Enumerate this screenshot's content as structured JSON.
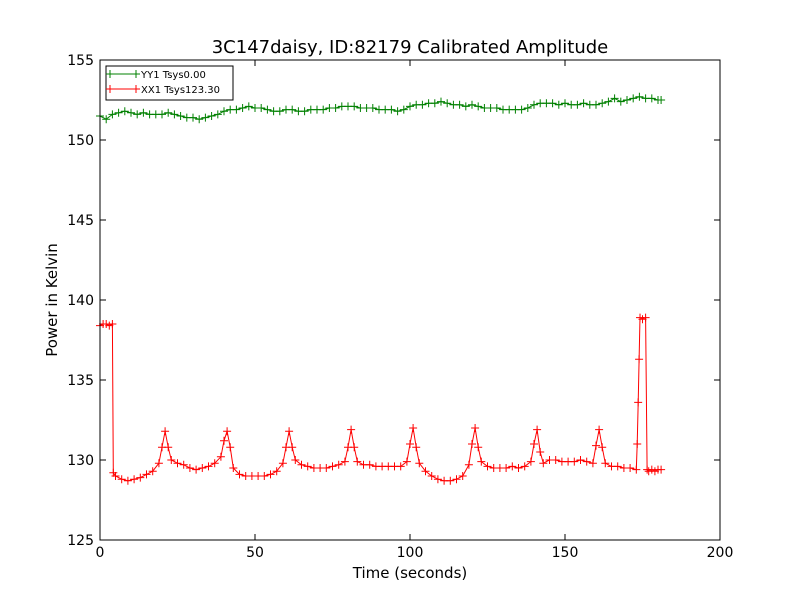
{
  "chart_data": {
    "type": "line",
    "title": "3C147daisy, ID:82179 Calibrated Amplitude",
    "xlabel": "Time (seconds)",
    "ylabel": "Power in Kelvin",
    "xlim": [
      0,
      200
    ],
    "ylim": [
      125,
      155
    ],
    "xticks": [
      0,
      50,
      100,
      150,
      200
    ],
    "yticks": [
      125,
      130,
      135,
      140,
      145,
      150,
      155
    ],
    "grid": false,
    "legend_position": "top-left",
    "marker": "plus",
    "series": [
      {
        "name": "YY1 Tsys0.00",
        "color": "#008000",
        "points": [
          [
            0,
            151.5
          ],
          [
            2,
            151.3
          ],
          [
            4,
            151.6
          ],
          [
            6,
            151.7
          ],
          [
            8,
            151.8
          ],
          [
            10,
            151.7
          ],
          [
            12,
            151.6
          ],
          [
            14,
            151.7
          ],
          [
            16,
            151.6
          ],
          [
            18,
            151.6
          ],
          [
            20,
            151.6
          ],
          [
            22,
            151.7
          ],
          [
            24,
            151.6
          ],
          [
            26,
            151.5
          ],
          [
            28,
            151.4
          ],
          [
            30,
            151.4
          ],
          [
            32,
            151.3
          ],
          [
            34,
            151.4
          ],
          [
            36,
            151.5
          ],
          [
            38,
            151.6
          ],
          [
            40,
            151.8
          ],
          [
            42,
            151.9
          ],
          [
            44,
            151.9
          ],
          [
            46,
            152.0
          ],
          [
            48,
            152.1
          ],
          [
            50,
            152.0
          ],
          [
            52,
            152.0
          ],
          [
            54,
            151.9
          ],
          [
            56,
            151.8
          ],
          [
            58,
            151.8
          ],
          [
            60,
            151.9
          ],
          [
            62,
            151.9
          ],
          [
            64,
            151.8
          ],
          [
            66,
            151.8
          ],
          [
            68,
            151.9
          ],
          [
            70,
            151.9
          ],
          [
            72,
            151.9
          ],
          [
            74,
            152.0
          ],
          [
            76,
            152.0
          ],
          [
            78,
            152.1
          ],
          [
            80,
            152.1
          ],
          [
            82,
            152.1
          ],
          [
            84,
            152.0
          ],
          [
            86,
            152.0
          ],
          [
            88,
            152.0
          ],
          [
            90,
            151.9
          ],
          [
            92,
            151.9
          ],
          [
            94,
            151.9
          ],
          [
            96,
            151.8
          ],
          [
            98,
            151.9
          ],
          [
            100,
            152.1
          ],
          [
            102,
            152.2
          ],
          [
            104,
            152.2
          ],
          [
            106,
            152.3
          ],
          [
            108,
            152.3
          ],
          [
            110,
            152.4
          ],
          [
            112,
            152.3
          ],
          [
            114,
            152.2
          ],
          [
            116,
            152.2
          ],
          [
            118,
            152.1
          ],
          [
            120,
            152.2
          ],
          [
            122,
            152.1
          ],
          [
            124,
            152.0
          ],
          [
            126,
            152.0
          ],
          [
            128,
            152.0
          ],
          [
            130,
            151.9
          ],
          [
            132,
            151.9
          ],
          [
            134,
            151.9
          ],
          [
            136,
            151.9
          ],
          [
            138,
            152.0
          ],
          [
            140,
            152.2
          ],
          [
            142,
            152.3
          ],
          [
            144,
            152.3
          ],
          [
            146,
            152.3
          ],
          [
            148,
            152.2
          ],
          [
            150,
            152.3
          ],
          [
            152,
            152.2
          ],
          [
            154,
            152.2
          ],
          [
            156,
            152.3
          ],
          [
            158,
            152.2
          ],
          [
            160,
            152.2
          ],
          [
            162,
            152.3
          ],
          [
            164,
            152.4
          ],
          [
            166,
            152.6
          ],
          [
            168,
            152.4
          ],
          [
            170,
            152.5
          ],
          [
            172,
            152.6
          ],
          [
            174,
            152.7
          ],
          [
            176,
            152.6
          ],
          [
            178,
            152.6
          ],
          [
            180,
            152.5
          ],
          [
            181,
            152.5
          ]
        ]
      },
      {
        "name": "XX1 Tsys123.30",
        "color": "#ff0000",
        "points": [
          [
            0,
            138.4
          ],
          [
            1,
            138.5
          ],
          [
            2,
            138.5
          ],
          [
            3,
            138.4
          ],
          [
            4,
            138.5
          ],
          [
            4.3,
            129.2
          ],
          [
            5,
            129.0
          ],
          [
            7,
            128.8
          ],
          [
            9,
            128.7
          ],
          [
            11,
            128.8
          ],
          [
            13,
            128.9
          ],
          [
            15,
            129.1
          ],
          [
            17,
            129.3
          ],
          [
            19,
            129.8
          ],
          [
            20,
            130.8
          ],
          [
            21,
            131.8
          ],
          [
            22,
            130.8
          ],
          [
            23,
            130.0
          ],
          [
            25,
            129.8
          ],
          [
            27,
            129.7
          ],
          [
            29,
            129.5
          ],
          [
            31,
            129.4
          ],
          [
            33,
            129.5
          ],
          [
            35,
            129.6
          ],
          [
            37,
            129.8
          ],
          [
            39,
            130.2
          ],
          [
            40,
            131.2
          ],
          [
            41,
            131.8
          ],
          [
            42,
            130.8
          ],
          [
            43,
            129.5
          ],
          [
            45,
            129.1
          ],
          [
            47,
            129.0
          ],
          [
            49,
            129.0
          ],
          [
            51,
            129.0
          ],
          [
            53,
            129.0
          ],
          [
            55,
            129.1
          ],
          [
            57,
            129.3
          ],
          [
            59,
            129.8
          ],
          [
            60,
            130.8
          ],
          [
            61,
            131.8
          ],
          [
            62,
            130.8
          ],
          [
            63,
            130.0
          ],
          [
            65,
            129.7
          ],
          [
            67,
            129.6
          ],
          [
            69,
            129.5
          ],
          [
            71,
            129.5
          ],
          [
            73,
            129.5
          ],
          [
            75,
            129.6
          ],
          [
            77,
            129.7
          ],
          [
            79,
            129.9
          ],
          [
            80,
            130.8
          ],
          [
            81,
            131.9
          ],
          [
            82,
            130.8
          ],
          [
            83,
            129.9
          ],
          [
            85,
            129.7
          ],
          [
            87,
            129.7
          ],
          [
            89,
            129.6
          ],
          [
            91,
            129.6
          ],
          [
            93,
            129.6
          ],
          [
            95,
            129.6
          ],
          [
            97,
            129.6
          ],
          [
            99,
            129.9
          ],
          [
            100,
            131.0
          ],
          [
            101,
            132.0
          ],
          [
            102,
            130.8
          ],
          [
            103,
            129.8
          ],
          [
            105,
            129.3
          ],
          [
            107,
            129.0
          ],
          [
            109,
            128.8
          ],
          [
            111,
            128.7
          ],
          [
            113,
            128.7
          ],
          [
            115,
            128.8
          ],
          [
            117,
            129.0
          ],
          [
            119,
            129.7
          ],
          [
            120,
            131.0
          ],
          [
            121,
            132.0
          ],
          [
            122,
            130.8
          ],
          [
            123,
            129.9
          ],
          [
            125,
            129.6
          ],
          [
            127,
            129.5
          ],
          [
            129,
            129.5
          ],
          [
            131,
            129.5
          ],
          [
            133,
            129.6
          ],
          [
            135,
            129.5
          ],
          [
            137,
            129.6
          ],
          [
            139,
            129.9
          ],
          [
            140,
            131.0
          ],
          [
            141,
            131.9
          ],
          [
            142,
            130.5
          ],
          [
            143,
            129.8
          ],
          [
            145,
            130.0
          ],
          [
            147,
            130.0
          ],
          [
            149,
            129.9
          ],
          [
            151,
            129.9
          ],
          [
            153,
            129.9
          ],
          [
            155,
            130.0
          ],
          [
            157,
            129.9
          ],
          [
            159,
            129.8
          ],
          [
            160,
            130.9
          ],
          [
            161,
            131.9
          ],
          [
            162,
            130.8
          ],
          [
            163,
            129.8
          ],
          [
            165,
            129.6
          ],
          [
            167,
            129.6
          ],
          [
            169,
            129.5
          ],
          [
            171,
            129.5
          ],
          [
            173,
            129.4
          ],
          [
            173.3,
            131.0
          ],
          [
            173.6,
            133.6
          ],
          [
            173.9,
            136.3
          ],
          [
            174.2,
            138.9
          ],
          [
            175,
            138.8
          ],
          [
            176,
            138.9
          ],
          [
            176.5,
            129.4
          ],
          [
            177,
            129.3
          ],
          [
            178,
            129.4
          ],
          [
            179,
            129.3
          ],
          [
            180,
            129.4
          ],
          [
            181,
            129.4
          ]
        ]
      }
    ]
  }
}
